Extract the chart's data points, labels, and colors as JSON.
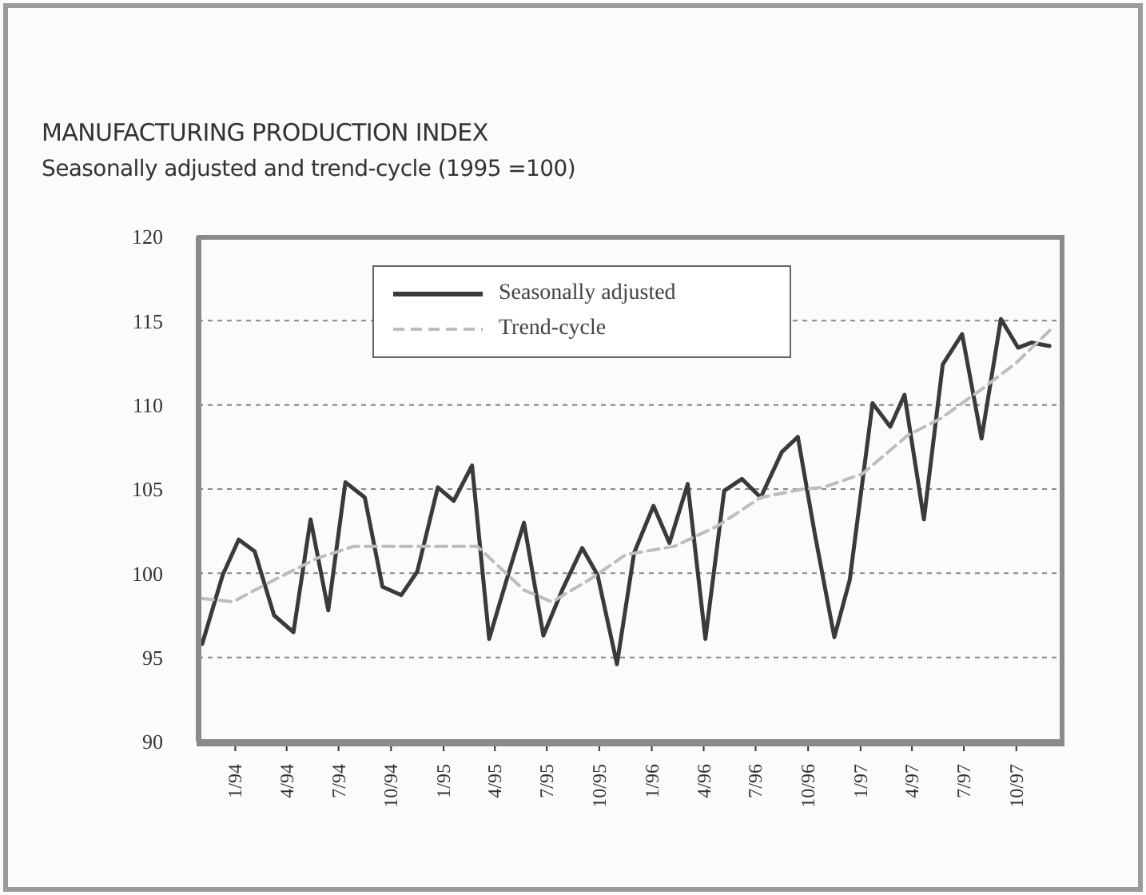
{
  "chart_data": {
    "type": "line",
    "title": "MANUFACTURING PRODUCTION INDEX",
    "subtitle": "Seasonally adjusted and trend-cycle (1995 =100)",
    "xlim": [
      "1993-10-28",
      "1997-12-16"
    ],
    "xticks": [
      {
        "value": "1994-01",
        "label": "1/94"
      },
      {
        "value": "1994-04",
        "label": "4/94"
      },
      {
        "value": "1994-07",
        "label": "7/94"
      },
      {
        "value": "1994-10",
        "label": "10/94"
      },
      {
        "value": "1995-01",
        "label": "1/95"
      },
      {
        "value": "1995-04",
        "label": "4/95"
      },
      {
        "value": "1995-07",
        "label": "7/95"
      },
      {
        "value": "1995-10",
        "label": "10/95"
      },
      {
        "value": "1996-01",
        "label": "1/96"
      },
      {
        "value": "1996-04",
        "label": "4/96"
      },
      {
        "value": "1996-07",
        "label": "7/96"
      },
      {
        "value": "1996-10",
        "label": "10/96"
      },
      {
        "value": "1997-01",
        "label": "1/97"
      },
      {
        "value": "1997-04",
        "label": "4/97"
      },
      {
        "value": "1997-07",
        "label": "7/97"
      },
      {
        "value": "1997-10",
        "label": "10/97"
      }
    ],
    "ylim": [
      90,
      120
    ],
    "yticks": [
      90,
      95,
      100,
      105,
      110,
      115,
      120
    ],
    "grid": "y",
    "legend": "top",
    "marker": "none",
    "series": [
      {
        "name": "Seasonally adjusted",
        "color": "#3a3a3a",
        "line_style": "solid",
        "x": [
          "1993-11-04",
          "1993-12-10",
          "1994-01-07",
          "1994-02-04",
          "1994-03-10",
          "1994-04-13",
          "1994-05-13",
          "1994-06-13",
          "1994-07-13",
          "1994-08-16",
          "1994-09-16",
          "1994-10-19",
          "1994-11-16",
          "1994-12-22",
          "1995-01-19",
          "1995-02-20",
          "1995-03-22",
          "1995-04-25",
          "1995-05-22",
          "1995-06-25",
          "1995-07-28",
          "1995-09-01",
          "1995-09-28",
          "1995-11-01",
          "1995-12-01",
          "1996-01-04",
          "1996-02-01",
          "1996-03-04",
          "1996-04-04",
          "1996-05-07",
          "1996-06-07",
          "1996-07-10",
          "1996-08-16",
          "1996-09-13",
          "1996-10-13",
          "1996-11-16",
          "1996-12-13",
          "1997-01-22",
          "1997-02-22",
          "1997-03-19",
          "1997-04-22",
          "1997-05-25",
          "1997-06-28",
          "1997-08-01",
          "1997-09-04",
          "1997-10-04",
          "1997-10-28",
          "1997-11-28"
        ],
        "values": [
          95.8,
          99.9,
          102.0,
          101.3,
          97.5,
          96.5,
          103.2,
          97.8,
          105.4,
          104.5,
          99.2,
          98.7,
          100.1,
          105.1,
          104.3,
          106.4,
          96.1,
          100.0,
          103.0,
          96.3,
          99.0,
          101.5,
          99.9,
          94.6,
          101.2,
          104.0,
          101.8,
          105.3,
          96.1,
          104.9,
          105.6,
          104.5,
          107.2,
          108.1,
          102.3,
          96.2,
          99.6,
          110.1,
          108.7,
          110.6,
          103.2,
          112.4,
          114.2,
          108.0,
          115.1,
          113.4,
          113.7,
          113.5
        ]
      },
      {
        "name": "Trend-cycle",
        "color": "#bdbdbd",
        "line_style": "dashed",
        "x": [
          "1993-11-04",
          "1993-12-28",
          "1994-03-10",
          "1994-05-25",
          "1994-07-28",
          "1994-11-01",
          "1995-03-01",
          "1995-05-22",
          "1995-07-10",
          "1995-09-13",
          "1995-11-16",
          "1996-02-10",
          "1996-04-25",
          "1996-07-10",
          "1996-09-22",
          "1996-10-28",
          "1997-01-04",
          "1997-03-25",
          "1997-05-22",
          "1997-08-04",
          "1997-10-01",
          "1997-12-04"
        ],
        "values": [
          98.5,
          98.3,
          99.6,
          100.9,
          101.6,
          101.6,
          101.6,
          99.0,
          98.3,
          99.6,
          101.1,
          101.6,
          102.8,
          104.5,
          105.0,
          105.1,
          105.9,
          108.2,
          109.2,
          111.0,
          112.5,
          114.6
        ]
      }
    ]
  }
}
